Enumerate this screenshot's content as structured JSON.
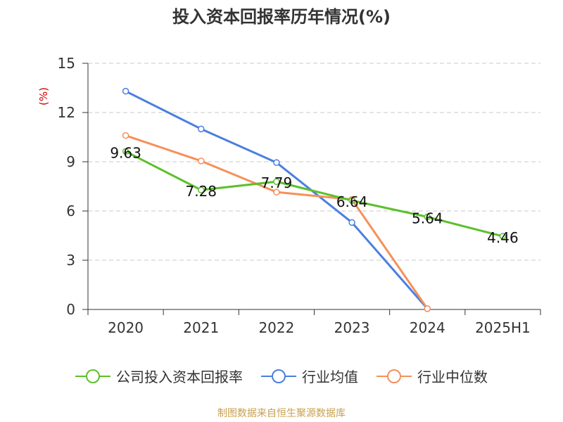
{
  "chart_data": {
    "type": "line",
    "title": "投入资本回报率历年情况(%)",
    "y_unit_label": "(%)",
    "categories": [
      "2020",
      "2021",
      "2022",
      "2023",
      "2024",
      "2025H1"
    ],
    "ylim": [
      0,
      15
    ],
    "yticks": [
      0,
      3,
      6,
      9,
      12,
      15
    ],
    "grid": true,
    "legend_position": "bottom",
    "series": [
      {
        "name": "公司投入资本回报率",
        "color": "#5cc02a",
        "values": [
          9.63,
          7.28,
          7.79,
          6.64,
          5.64,
          4.46
        ],
        "data_labels": [
          "9.63",
          "7.28",
          "7.79",
          "6.64",
          "5.64",
          "4.46"
        ]
      },
      {
        "name": "行业均值",
        "color": "#4a7fe0",
        "values": [
          13.3,
          11.0,
          8.95,
          5.3,
          0.05,
          null
        ]
      },
      {
        "name": "行业中位数",
        "color": "#f5905a",
        "values": [
          10.6,
          9.05,
          7.15,
          6.7,
          0.05,
          null
        ]
      }
    ],
    "source": "制图数据来自恒生聚源数据库"
  }
}
